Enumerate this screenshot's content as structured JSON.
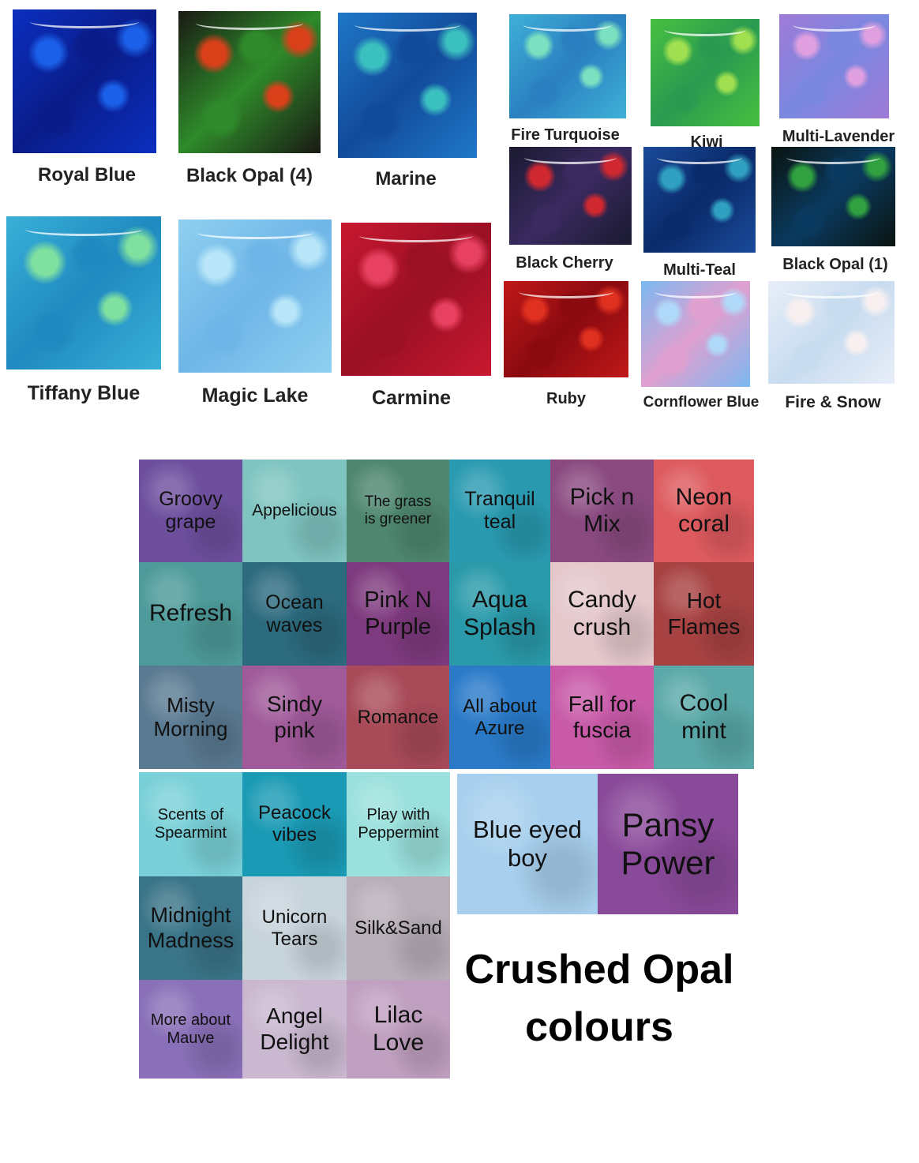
{
  "opal_swatches": [
    {
      "name": "Royal Blue",
      "colors": [
        "#0b2fbf",
        "#1a60e8",
        "#0a1c8a"
      ]
    },
    {
      "name": "Black Opal (4)",
      "colors": [
        "#1a1a14",
        "#d9401a",
        "#2e8a2a"
      ]
    },
    {
      "name": "Marine",
      "colors": [
        "#1f78c8",
        "#3bc0c0",
        "#124a9a"
      ]
    },
    {
      "name": "Tiffany Blue",
      "colors": [
        "#39b0d8",
        "#7fe0a0",
        "#1f8ac0"
      ]
    },
    {
      "name": "Magic Lake",
      "colors": [
        "#8fd0f0",
        "#b8e6f8",
        "#6fb6e8"
      ]
    },
    {
      "name": "Carmine",
      "colors": [
        "#c81830",
        "#e84060",
        "#9a1024"
      ]
    },
    {
      "name": "Fire Turquoise",
      "colors": [
        "#3fb0d8",
        "#7ae0c0",
        "#2a80c0"
      ]
    },
    {
      "name": "Kiwi",
      "colors": [
        "#48c040",
        "#a0e050",
        "#2a9a50"
      ]
    },
    {
      "name": "Multi-Lavender",
      "colors": [
        "#a07ad8",
        "#e0a0e0",
        "#7a88e0"
      ]
    },
    {
      "name": "Black Cherry",
      "colors": [
        "#1a1a30",
        "#d02830",
        "#3a2a60"
      ]
    },
    {
      "name": "Multi-Teal",
      "colors": [
        "#1a4a9a",
        "#30a0c0",
        "#0a2a6a"
      ]
    },
    {
      "name": "Black Opal (1)",
      "colors": [
        "#0a1410",
        "#30a040",
        "#0a3a60"
      ]
    },
    {
      "name": "Ruby",
      "colors": [
        "#c01818",
        "#e03020",
        "#8a0a10"
      ]
    },
    {
      "name": "Cornflower Blue",
      "colors": [
        "#7ab8f0",
        "#b0d8f8",
        "#e0a0d0"
      ]
    },
    {
      "name": "Fire & Snow",
      "colors": [
        "#e8eef8",
        "#f8f0f0",
        "#c8dcf0"
      ]
    }
  ],
  "crushed_opal": {
    "title_line1": "Crushed Opal",
    "title_line2": "colours",
    "grid": [
      {
        "name": "Groovy\ngrape",
        "color": "#6e4f9e"
      },
      {
        "name": "Appelicious",
        "color": "#7fc4c0"
      },
      {
        "name": "The  grass\nis greener",
        "color": "#4e8670"
      },
      {
        "name": "Tranquil\nteal",
        "color": "#2a9ab0"
      },
      {
        "name": "Pick n\nMix",
        "color": "#8a4a80"
      },
      {
        "name": "Neon\ncoral",
        "color": "#dd5a5e"
      },
      {
        "name": "Refresh",
        "color": "#4e9a9a"
      },
      {
        "name": "Ocean\nwaves",
        "color": "#2c6a7e"
      },
      {
        "name": "Pink N\nPurple",
        "color": "#7e3a7e"
      },
      {
        "name": "Aqua\nSplash",
        "color": "#2a9aaa"
      },
      {
        "name": "Candy\ncrush",
        "color": "#e4c8cc"
      },
      {
        "name": "Hot\nFlames",
        "color": "#a84242"
      },
      {
        "name": "Misty\nMorning",
        "color": "#5a7a92"
      },
      {
        "name": "Sindy\npink",
        "color": "#a05a9a"
      },
      {
        "name": "Romance",
        "color": "#a84a58"
      },
      {
        "name": "All about\nAzure",
        "color": "#2a7ac8"
      },
      {
        "name": "Fall for\nfuscia",
        "color": "#c85aa8"
      },
      {
        "name": "Cool\nmint",
        "color": "#5aa8a8"
      }
    ],
    "grid2": [
      {
        "name": "Scents of\nSpearmint",
        "color": "#7ad0d8"
      },
      {
        "name": "Peacock\nvibes",
        "color": "#1a9ab4"
      },
      {
        "name": "Play with\nPeppermint",
        "color": "#9ae0dc"
      },
      {
        "name": "Midnight\nMadness",
        "color": "#3a7488"
      },
      {
        "name": "Unicorn\nTears",
        "color": "#c8d4dc"
      },
      {
        "name": "Silk&Sand",
        "color": "#b8aeb8"
      },
      {
        "name": "More about\nMauve",
        "color": "#8a70b8"
      },
      {
        "name": "Angel\nDelight",
        "color": "#cab8d0"
      },
      {
        "name": "Lilac\nLove",
        "color": "#c0a0c0"
      }
    ],
    "large": [
      {
        "name": "Blue eyed\nboy",
        "color": "#a8d0ee"
      },
      {
        "name": "Pansy\nPower",
        "color": "#8a4a9a"
      }
    ]
  }
}
